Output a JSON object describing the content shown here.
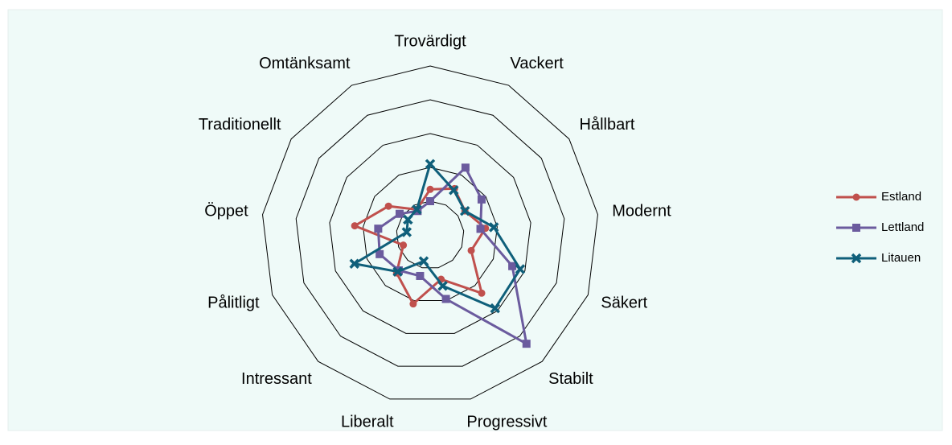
{
  "chart_data": {
    "type": "radar",
    "categories": [
      "Trovärdigt",
      "Vackert",
      "Hållbart",
      "Modernt",
      "Säkert",
      "Stabilt",
      "Progressivt",
      "Liberalt",
      "Intressant",
      "Pålitligt",
      "Öppet",
      "Traditionellt",
      "Omtänksamt"
    ],
    "rlim": [
      0,
      5
    ],
    "rticks": [
      1,
      2,
      3,
      4,
      5
    ],
    "grid": true,
    "legend": "right",
    "series": [
      {
        "name": "Estland",
        "color": "#c0504d",
        "values": [
          1.35,
          1.55,
          1.25,
          1.65,
          1.3,
          2.3,
          1.35,
          2.1,
          1.5,
          0.85,
          2.25,
          1.5,
          0.85
        ]
      },
      {
        "name": "Lettland",
        "color": "#6b5b9e",
        "values": [
          1.0,
          2.25,
          1.85,
          1.5,
          2.6,
          4.3,
          1.95,
          1.25,
          1.4,
          1.6,
          1.55,
          1.1,
          0.8
        ]
      },
      {
        "name": "Litauen",
        "color": "#0f5f7a",
        "values": [
          2.1,
          1.5,
          1.25,
          1.9,
          2.85,
          2.9,
          1.55,
          0.8,
          1.45,
          2.4,
          0.7,
          0.8,
          0.85
        ]
      }
    ]
  }
}
